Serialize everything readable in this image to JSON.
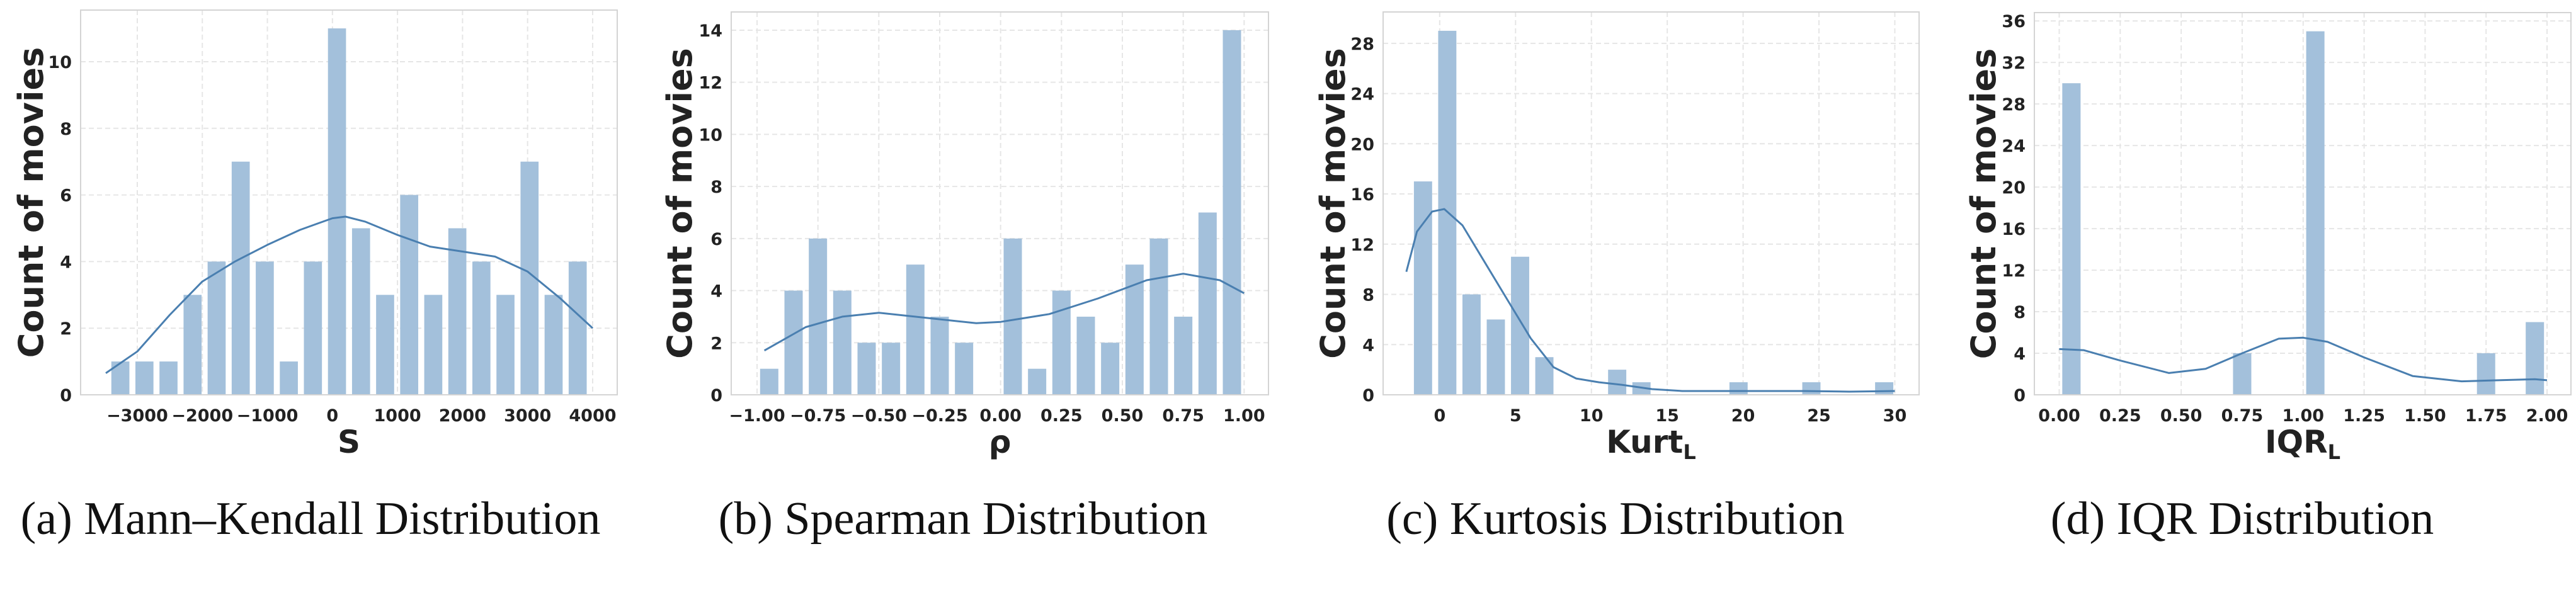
{
  "chart_data": [
    {
      "type": "bar",
      "title": "(a) Mann–Kendall Distribution",
      "xlabel": {
        "text": "S",
        "sub": ""
      },
      "ylabel": "Count of movies",
      "xlim": [
        -3871,
        4378
      ],
      "ylim": [
        0,
        11.55
      ],
      "grid": true,
      "bin_start": -3445,
      "bin_width": 370,
      "values": [
        1,
        1,
        1,
        3,
        4,
        7,
        4,
        1,
        4,
        11,
        5,
        3,
        6,
        3,
        5,
        4,
        3,
        7,
        3,
        4
      ],
      "xticks": [
        -3000,
        -2000,
        -1000,
        0,
        1000,
        2000,
        3000,
        4000
      ],
      "xtick_labels": [
        "−3000",
        "−2000",
        "−1000",
        "0",
        "1000",
        "2000",
        "3000",
        "4000"
      ],
      "yticks": [
        0,
        2,
        4,
        6,
        8,
        10
      ],
      "ytick_labels": [
        "0",
        "2",
        "4",
        "6",
        "8",
        "10"
      ],
      "kde": [
        [
          -3484,
          0.65
        ],
        [
          -3000,
          1.3
        ],
        [
          -2500,
          2.4
        ],
        [
          -2000,
          3.4
        ],
        [
          -1500,
          4.0
        ],
        [
          -1000,
          4.5
        ],
        [
          -500,
          4.95
        ],
        [
          0,
          5.3
        ],
        [
          200,
          5.35
        ],
        [
          500,
          5.2
        ],
        [
          1000,
          4.8
        ],
        [
          1500,
          4.45
        ],
        [
          2000,
          4.3
        ],
        [
          2500,
          4.15
        ],
        [
          3000,
          3.7
        ],
        [
          3500,
          2.9
        ],
        [
          4000,
          2.0
        ]
      ]
    },
    {
      "type": "bar",
      "title": "(b) Spearman Distribution",
      "xlabel": {
        "text": "ρ",
        "sub": ""
      },
      "ylabel": "Count of movies",
      "xlim": [
        -1.106,
        1.1
      ],
      "ylim": [
        0,
        14.7
      ],
      "grid": true,
      "bin_start": -1.0,
      "bin_width": 0.1,
      "values": [
        1,
        4,
        6,
        4,
        2,
        2,
        5,
        3,
        2,
        0,
        6,
        1,
        4,
        3,
        2,
        5,
        6,
        3,
        7,
        14
      ],
      "xticks": [
        -1,
        -0.75,
        -0.5,
        -0.25,
        0,
        0.25,
        0.5,
        0.75,
        1
      ],
      "xtick_labels": [
        "−1.00",
        "−0.75",
        "−0.50",
        "−0.25",
        "0.00",
        "0.25",
        "0.50",
        "0.75",
        "1.00"
      ],
      "yticks": [
        0,
        2,
        4,
        6,
        8,
        10,
        12,
        14
      ],
      "ytick_labels": [
        "0",
        "2",
        "4",
        "6",
        "8",
        "10",
        "12",
        "14"
      ],
      "kde": [
        [
          -0.97,
          1.7
        ],
        [
          -0.8,
          2.6
        ],
        [
          -0.65,
          3.0
        ],
        [
          -0.5,
          3.15
        ],
        [
          -0.3,
          2.95
        ],
        [
          -0.1,
          2.75
        ],
        [
          0.0,
          2.8
        ],
        [
          0.2,
          3.1
        ],
        [
          0.4,
          3.7
        ],
        [
          0.6,
          4.4
        ],
        [
          0.75,
          4.65
        ],
        [
          0.9,
          4.4
        ],
        [
          1.0,
          3.9
        ]
      ]
    },
    {
      "type": "bar",
      "title": "(c) Kurtosis Distribution",
      "xlabel": {
        "text": "Kurt",
        "sub": "L"
      },
      "ylabel": "Count of movies",
      "xlim": [
        -3.73,
        31.6
      ],
      "ylim": [
        0,
        30.5
      ],
      "grid": true,
      "bin_start": -1.9,
      "bin_width": 1.6,
      "values": [
        17,
        29,
        8,
        6,
        11,
        3,
        0,
        0,
        2,
        1,
        0,
        0,
        0,
        1,
        0,
        0,
        1,
        0,
        0,
        1
      ],
      "xticks": [
        0,
        5,
        10,
        15,
        20,
        25,
        30
      ],
      "xtick_labels": [
        "0",
        "5",
        "10",
        "15",
        "20",
        "25",
        "30"
      ],
      "yticks": [
        0,
        4,
        8,
        12,
        16,
        20,
        24,
        28
      ],
      "ytick_labels": [
        "0",
        "4",
        "8",
        "12",
        "16",
        "20",
        "24",
        "28"
      ],
      "kde": [
        [
          -2.2,
          9.8
        ],
        [
          -1.5,
          13
        ],
        [
          -0.5,
          14.6
        ],
        [
          0.3,
          14.8
        ],
        [
          1.5,
          13.5
        ],
        [
          3,
          10.5
        ],
        [
          4.5,
          7.5
        ],
        [
          6,
          4.5
        ],
        [
          7.5,
          2.2
        ],
        [
          9,
          1.3
        ],
        [
          10.5,
          1.0
        ],
        [
          12,
          0.8
        ],
        [
          14,
          0.45
        ],
        [
          16,
          0.3
        ],
        [
          20,
          0.3
        ],
        [
          24,
          0.3
        ],
        [
          27,
          0.25
        ],
        [
          30,
          0.3
        ]
      ]
    },
    {
      "type": "bar",
      "title": "(d) IQR Distribution",
      "xlabel": {
        "text": "IQR",
        "sub": "L"
      },
      "ylabel": "Count of movies",
      "xlim": [
        -0.102,
        2.098
      ],
      "ylim": [
        0,
        36.8
      ],
      "grid": true,
      "bin_start": 0.0,
      "bin_width": 0.1,
      "values": [
        30,
        0,
        0,
        0,
        0,
        0,
        0,
        4,
        0,
        0,
        35,
        0,
        0,
        0,
        0,
        0,
        0,
        4,
        0,
        7
      ],
      "xticks": [
        0,
        0.25,
        0.5,
        0.75,
        1,
        1.25,
        1.5,
        1.75,
        2
      ],
      "xtick_labels": [
        "0.00",
        "0.25",
        "0.50",
        "0.75",
        "1.00",
        "1.25",
        "1.50",
        "1.75",
        "2.00"
      ],
      "yticks": [
        0,
        4,
        8,
        12,
        16,
        20,
        24,
        28,
        32,
        36
      ],
      "ytick_labels": [
        "0",
        "4",
        "8",
        "12",
        "16",
        "20",
        "24",
        "28",
        "32",
        "36"
      ],
      "kde": [
        [
          0,
          4.4
        ],
        [
          0.1,
          4.3
        ],
        [
          0.25,
          3.3
        ],
        [
          0.45,
          2.1
        ],
        [
          0.6,
          2.5
        ],
        [
          0.75,
          4.0
        ],
        [
          0.9,
          5.4
        ],
        [
          1.0,
          5.5
        ],
        [
          1.1,
          5.1
        ],
        [
          1.25,
          3.6
        ],
        [
          1.45,
          1.8
        ],
        [
          1.65,
          1.3
        ],
        [
          1.8,
          1.4
        ],
        [
          1.95,
          1.5
        ],
        [
          2.0,
          1.4
        ]
      ]
    }
  ],
  "colors": {
    "bar": "#a3c0db",
    "kde": "#4a7fb0",
    "grid": "#e6e6e6",
    "frame": "#d4d4d4",
    "text": "#222222"
  }
}
